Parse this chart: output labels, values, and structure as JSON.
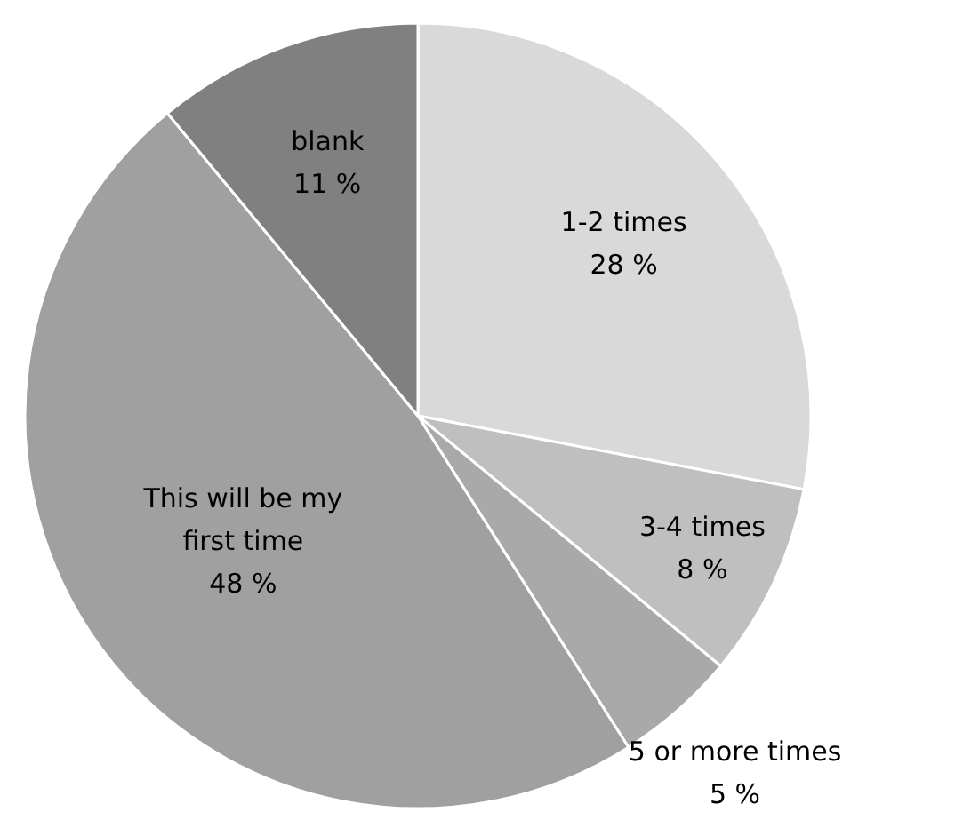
{
  "chart_data": {
    "type": "pie",
    "categories": [
      "1-2 times",
      "3-4 times",
      "5 or more times",
      "This will be my first time",
      "blank"
    ],
    "values": [
      28,
      8,
      5,
      48,
      11
    ],
    "colors": [
      "#d9d9d9",
      "#bfbfbf",
      "#a9a9a9",
      "#a0a0a0",
      "#808080"
    ],
    "value_labels": [
      "28 %",
      "8 %",
      "5 %",
      "48 %",
      "11 %"
    ]
  }
}
